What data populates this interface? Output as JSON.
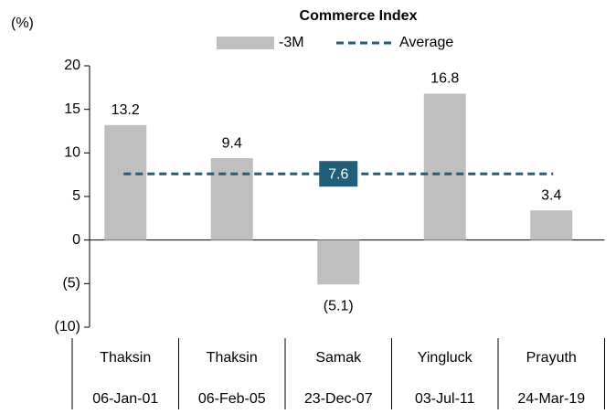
{
  "chart_data": {
    "type": "bar",
    "title": "Commerce Index",
    "y_axis_label": "(%)",
    "categories": [
      "Thaksin",
      "Thaksin",
      "Samak",
      "Yingluck",
      "Prayuth"
    ],
    "category_dates": [
      "06-Jan-01",
      "06-Feb-05",
      "23-Dec-07",
      "03-Jul-11",
      "24-Mar-19"
    ],
    "series": [
      {
        "name": "-3M",
        "color": "#bfbfbf",
        "values": [
          13.2,
          9.4,
          -5.1,
          16.8,
          3.4
        ],
        "value_labels": [
          "13.2",
          "9.4",
          "(5.1)",
          "16.8",
          "3.4"
        ]
      }
    ],
    "average": {
      "name": "Average",
      "value": 7.6,
      "color": "#1f5f7a"
    },
    "ylim": [
      -10,
      20
    ],
    "yticks": [
      {
        "value": -10,
        "label": "(10)"
      },
      {
        "value": -5,
        "label": "(5)"
      },
      0,
      5,
      10,
      15,
      20
    ],
    "grid": false
  }
}
